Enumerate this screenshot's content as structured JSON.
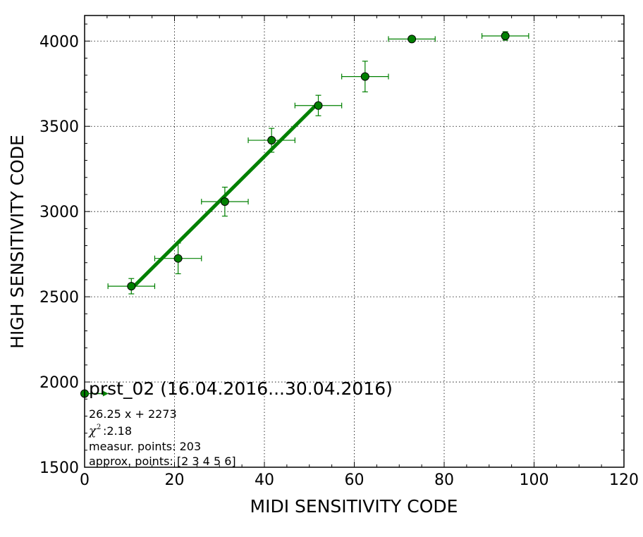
{
  "chart_data": {
    "type": "scatter",
    "title": "prst_02 (16.04.2016...30.04.2016)",
    "xlabel": "MIDI SENSITIVITY CODE",
    "ylabel": "HIGH SENSITIVITY CODE",
    "xlim": [
      0,
      120
    ],
    "ylim": [
      1500,
      4150
    ],
    "xticks": [
      0,
      20,
      40,
      60,
      80,
      100,
      120
    ],
    "yticks": [
      1500,
      2000,
      2500,
      3000,
      3500,
      4000
    ],
    "xtick_labels": [
      "0",
      "20",
      "40",
      "60",
      "80",
      "100",
      "120"
    ],
    "ytick_labels": [
      "1500",
      "2000",
      "2500",
      "3000",
      "3500",
      "4000"
    ],
    "grid": true,
    "color": "#008000",
    "points": [
      {
        "x": 0,
        "y": 1932,
        "xerr": 0,
        "yerr": 0
      },
      {
        "x": 10.4,
        "y": 2562,
        "xerr": 5.2,
        "yerr": 45
      },
      {
        "x": 20.8,
        "y": 2725,
        "xerr": 5.2,
        "yerr": 90
      },
      {
        "x": 31.2,
        "y": 3058,
        "xerr": 5.2,
        "yerr": 85
      },
      {
        "x": 41.6,
        "y": 3418,
        "xerr": 5.2,
        "yerr": 70
      },
      {
        "x": 52.0,
        "y": 3622,
        "xerr": 5.2,
        "yerr": 60
      },
      {
        "x": 62.4,
        "y": 3792,
        "xerr": 5.2,
        "yerr": 90
      },
      {
        "x": 72.8,
        "y": 4012,
        "xerr": 5.2,
        "yerr": 0
      },
      {
        "x": 93.6,
        "y": 4030,
        "xerr": 5.2,
        "yerr": 25
      }
    ],
    "fit": {
      "slope": 26.25,
      "intercept": 2273,
      "x_range": [
        10.4,
        52.0
      ]
    },
    "legend_marker_x_end": 5,
    "info_lines": [
      "26.25 x + 2273",
      ":2.18",
      "measur. points: 203",
      "approx. points: [2 3 4 5 6]"
    ],
    "chi_symbol": "χ",
    "chi_exp": "2"
  }
}
